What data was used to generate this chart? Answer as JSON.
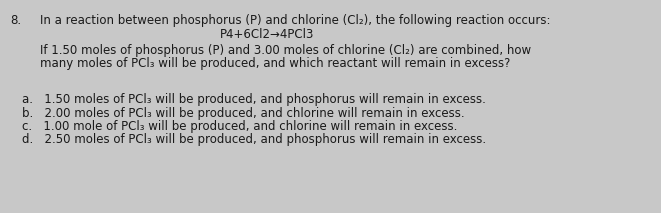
{
  "background_color": "#c8c8c8",
  "text_color": "#1a1a1a",
  "question_number": "8.",
  "line1": "In a reaction between phosphorus (P) and chlorine (Cl₂), the following reaction occurs:",
  "line2": "P4+6Cl2→4PCl3",
  "line3": "If 1.50 moles of phosphorus (P) and 3.00 moles of chlorine (Cl₂) are combined, how",
  "line4": "many moles of PCl₃ will be produced, and which reactant will remain in excess?",
  "option_a": "a.   1.50 moles of PCl₃ will be produced, and phosphorus will remain in excess.",
  "option_b": "b.   2.00 moles of PCl₃ will be produced, and chlorine will remain in excess.",
  "option_c": "c.   1.00 mole of PCl₃ will be produced, and chlorine will remain in excess.",
  "option_d": "d.   2.50 moles of PCl₃ will be produced, and phosphorus will remain in excess.",
  "font_size_main": 8.5,
  "font_size_options": 8.5
}
